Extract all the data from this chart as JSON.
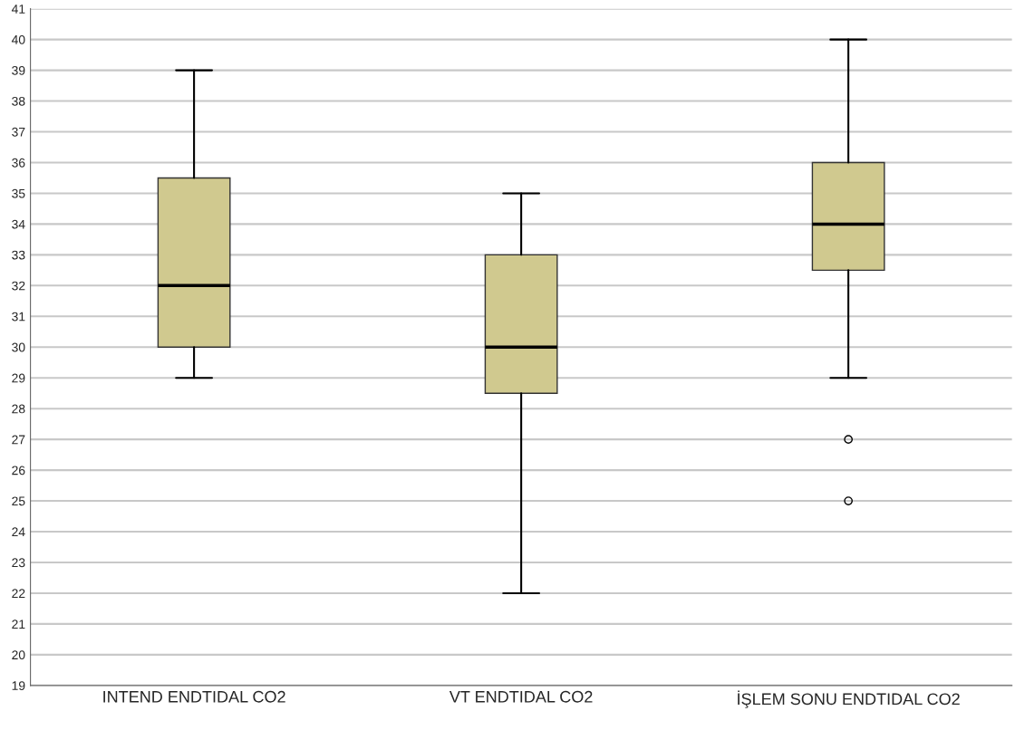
{
  "chart_data": {
    "type": "box",
    "categories": [
      "INTEND ENDTIDAL CO2",
      "VT ENDTIDAL CO2",
      "İŞLEM SONU ENDTIDAL CO2"
    ],
    "color": "#d0c98f",
    "boxes": [
      {
        "low": 29,
        "q1": 30,
        "median": 32,
        "q3": 35.5,
        "high": 39
      },
      {
        "low": 22,
        "q1": 28.5,
        "median": 30,
        "q3": 33,
        "high": 35
      },
      {
        "low": 29,
        "q1": 32.5,
        "median": 34,
        "q3": 36,
        "high": 40,
        "outliers": [
          27,
          25
        ]
      }
    ],
    "ylim": [
      19,
      41
    ],
    "yticks": [
      19,
      20,
      21,
      22,
      23,
      24,
      25,
      26,
      27,
      28,
      29,
      30,
      31,
      32,
      33,
      34,
      35,
      36,
      37,
      38,
      39,
      40,
      41
    ],
    "grid": "y",
    "marker": "circle"
  }
}
